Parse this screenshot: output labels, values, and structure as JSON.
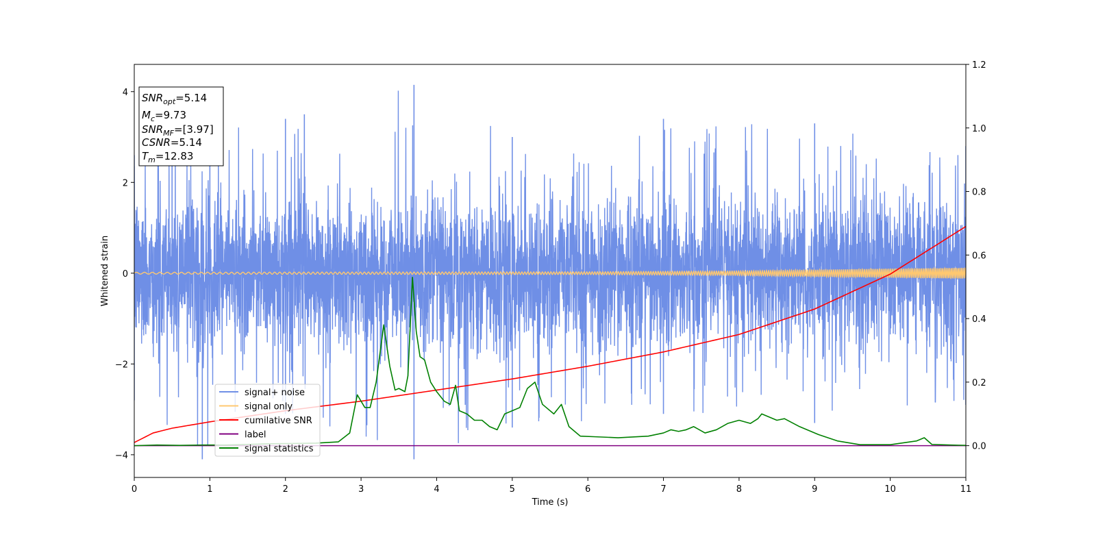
{
  "chart_data": {
    "type": "line",
    "xlabel": "Time (s)",
    "ylabel": "Whitened strain",
    "xlim": [
      0,
      11
    ],
    "ylim": [
      -4.5,
      4.6
    ],
    "y2lim": [
      -0.1,
      1.2
    ],
    "x_ticks": [
      "0",
      "1",
      "2",
      "3",
      "4",
      "5",
      "6",
      "7",
      "8",
      "9",
      "10",
      "11"
    ],
    "y_ticks": [
      "−4",
      "−2",
      "0",
      "2",
      "4"
    ],
    "y2_ticks": [
      "0.0",
      "0.2",
      "0.4",
      "0.6",
      "0.8",
      "1.0",
      "1.2"
    ],
    "legend_position": "lower-left",
    "annotation": [
      {
        "sym": "SNR",
        "sub": "opt",
        "val": "=5.14"
      },
      {
        "sym": "M",
        "sub": "c",
        "val": "=9.73"
      },
      {
        "sym": "SNR",
        "sub": "MF",
        "val": "=[3.97]"
      },
      {
        "sym": "CSNR",
        "sub": "",
        "val": "=5.14"
      },
      {
        "sym": "T",
        "sub": "m",
        "val": "=12.83"
      }
    ],
    "series": [
      {
        "name": "signal+ noise",
        "axis": "left",
        "color": "#6f8fe6",
        "description": "noisy whitened strain, approx. ±2 range with spikes",
        "envelope_upper": [
          [
            0,
            2.6
          ],
          [
            0.5,
            3.0
          ],
          [
            1,
            3.2
          ],
          [
            2,
            3.4
          ],
          [
            2.25,
            3.5
          ],
          [
            3.7,
            4.15
          ],
          [
            5,
            3.0
          ],
          [
            7,
            3.4
          ],
          [
            9,
            3.3
          ],
          [
            11,
            2.8
          ]
        ],
        "envelope_lower": [
          [
            0,
            -2.8
          ],
          [
            0.9,
            -4.1
          ],
          [
            2,
            -3.1
          ],
          [
            3.7,
            -4.1
          ],
          [
            5,
            -3.4
          ],
          [
            7,
            -3.1
          ],
          [
            9,
            -3.3
          ],
          [
            11,
            -2.9
          ]
        ]
      },
      {
        "name": "signal only",
        "axis": "left",
        "color": "#ffc870",
        "amplitude": [
          [
            0,
            0.02
          ],
          [
            6,
            0.03
          ],
          [
            8,
            0.05
          ],
          [
            10,
            0.1
          ],
          [
            11,
            0.12
          ]
        ]
      },
      {
        "name": "cumilative SNR",
        "axis": "right",
        "color": "#ff0000",
        "x": [
          0,
          0.25,
          0.5,
          1,
          2,
          3,
          4,
          5,
          6,
          7,
          8,
          9,
          10,
          11
        ],
        "y": [
          0.01,
          0.04,
          0.055,
          0.075,
          0.11,
          0.14,
          0.175,
          0.21,
          0.25,
          0.295,
          0.35,
          0.43,
          0.54,
          0.69
        ]
      },
      {
        "name": "label",
        "axis": "right",
        "color": "#800080",
        "x": [
          0,
          11
        ],
        "y": [
          0.0,
          0.0
        ]
      },
      {
        "name": "signal statistics",
        "axis": "right",
        "color": "#008000",
        "x": [
          0,
          0.3,
          0.6,
          0.9,
          1.2,
          1.5,
          1.8,
          2.1,
          2.4,
          2.7,
          2.85,
          2.95,
          3.05,
          3.12,
          3.2,
          3.3,
          3.38,
          3.45,
          3.5,
          3.58,
          3.62,
          3.68,
          3.73,
          3.78,
          3.84,
          3.92,
          4.0,
          4.1,
          4.18,
          4.25,
          4.3,
          4.4,
          4.5,
          4.6,
          4.7,
          4.8,
          4.9,
          5.0,
          5.1,
          5.2,
          5.3,
          5.4,
          5.55,
          5.65,
          5.75,
          5.9,
          6.1,
          6.4,
          6.8,
          7.0,
          7.1,
          7.2,
          7.3,
          7.4,
          7.55,
          7.7,
          7.85,
          8.0,
          8.15,
          8.25,
          8.3,
          8.5,
          8.6,
          8.8,
          9.05,
          9.3,
          9.6,
          10.0,
          10.35,
          10.45,
          10.55,
          10.8,
          11.0
        ],
        "y": [
          0.0,
          0.002,
          0.001,
          0.002,
          0.002,
          0.004,
          0.006,
          0.007,
          0.008,
          0.012,
          0.04,
          0.16,
          0.12,
          0.12,
          0.2,
          0.38,
          0.25,
          0.175,
          0.18,
          0.17,
          0.22,
          0.53,
          0.36,
          0.28,
          0.27,
          0.2,
          0.17,
          0.14,
          0.13,
          0.19,
          0.11,
          0.1,
          0.08,
          0.08,
          0.06,
          0.05,
          0.1,
          0.11,
          0.12,
          0.18,
          0.2,
          0.13,
          0.1,
          0.13,
          0.06,
          0.03,
          0.028,
          0.025,
          0.03,
          0.04,
          0.05,
          0.045,
          0.05,
          0.06,
          0.04,
          0.05,
          0.07,
          0.08,
          0.07,
          0.085,
          0.1,
          0.08,
          0.085,
          0.06,
          0.035,
          0.015,
          0.003,
          0.003,
          0.015,
          0.025,
          0.004,
          0.002,
          0.001
        ]
      }
    ]
  }
}
